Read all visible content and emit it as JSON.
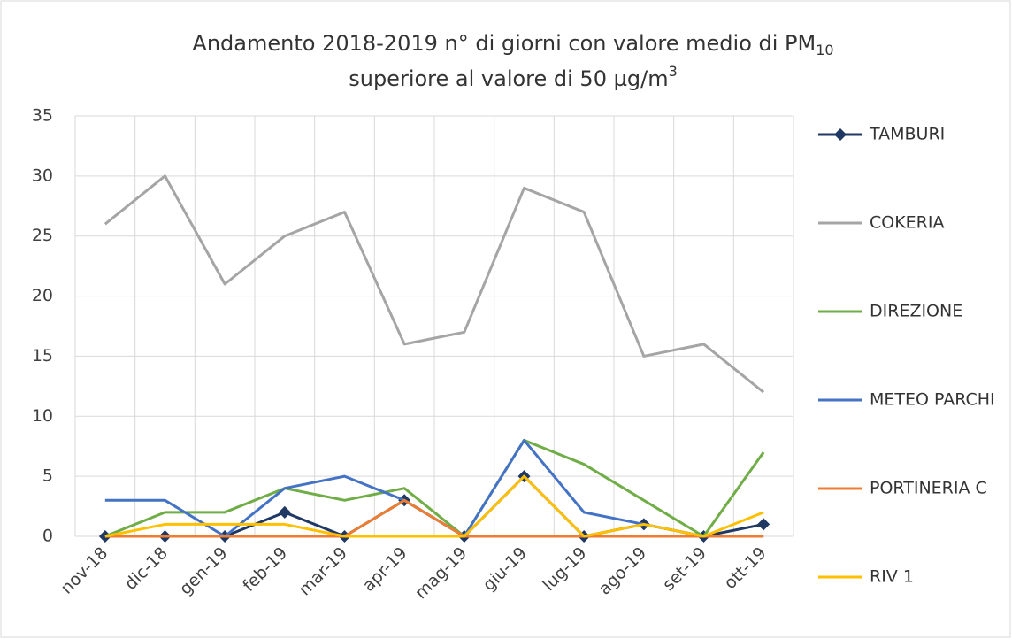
{
  "chart_data": {
    "type": "line",
    "title": {
      "line1": "Andamento 2018-2019 n° di giorni con valore medio di PM",
      "line1_subscript": "10",
      "line2": "superiore al valore di 50 µg/m",
      "line2_superscript": "3"
    },
    "categories": [
      "nov-18",
      "dic-18",
      "gen-19",
      "feb-19",
      "mar-19",
      "apr-19",
      "mag-19",
      "giu-19",
      "lug-19",
      "ago-19",
      "set-19",
      "ott-19"
    ],
    "series": [
      {
        "name": "TAMBURI",
        "color": "#1f3864",
        "marker": "diamond",
        "values": [
          0,
          0,
          0,
          2,
          0,
          3,
          0,
          5,
          0,
          1,
          0,
          1
        ]
      },
      {
        "name": "COKERIA",
        "color": "#a5a5a5",
        "values": [
          26,
          30,
          21,
          25,
          27,
          16,
          17,
          29,
          27,
          15,
          16,
          12
        ]
      },
      {
        "name": "DIREZIONE",
        "color": "#70ad47",
        "values": [
          0,
          2,
          2,
          4,
          3,
          4,
          0,
          8,
          6,
          3,
          0,
          7
        ]
      },
      {
        "name": "METEO PARCHI",
        "color": "#4472c4",
        "values": [
          3,
          3,
          0,
          4,
          5,
          3,
          0,
          8,
          2,
          1,
          0,
          0
        ]
      },
      {
        "name": "PORTINERIA C",
        "color": "#ed7d31",
        "values": [
          0,
          0,
          0,
          0,
          0,
          3,
          0,
          0,
          0,
          0,
          0,
          0
        ]
      },
      {
        "name": "RIV 1",
        "color": "#ffc000",
        "values": [
          0,
          1,
          1,
          1,
          0,
          0,
          0,
          5,
          0,
          1,
          0,
          2
        ]
      }
    ],
    "ylim": [
      0,
      35
    ],
    "yticks": [
      0,
      5,
      10,
      15,
      20,
      25,
      30,
      35
    ],
    "grid": true,
    "legend": "right"
  }
}
